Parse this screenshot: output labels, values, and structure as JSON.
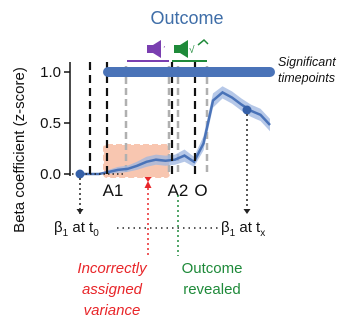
{
  "chart_data": {
    "type": "line",
    "title": "Outcome",
    "ylabel": "Beta coefficient (z-score)",
    "ylim": [
      -0.05,
      1.1
    ],
    "yticks": [
      0.0,
      0.5,
      1.0
    ],
    "ytick_labels": [
      "0.0",
      "0.5",
      "1.0"
    ],
    "x": [
      0,
      0.05,
      0.1,
      0.15,
      0.2,
      0.25,
      0.3,
      0.35,
      0.4,
      0.45,
      0.5,
      0.55,
      0.6,
      0.65,
      0.7,
      0.75,
      0.8,
      0.85,
      0.9,
      0.95,
      1.0
    ],
    "series": [
      {
        "values": [
          0,
          0,
          0,
          0.02,
          0.04,
          0.05,
          0.08,
          0.12,
          0.14,
          0.13,
          0.14,
          0.18,
          0.12,
          0.3,
          0.72,
          0.8,
          0.75,
          0.68,
          0.62,
          0.58,
          0.48
        ],
        "ci_half_width": [
          0,
          0,
          0,
          0.02,
          0.03,
          0.03,
          0.04,
          0.05,
          0.05,
          0.05,
          0.05,
          0.06,
          0.05,
          0.07,
          0.07,
          0.06,
          0.06,
          0.06,
          0.06,
          0.06,
          0.06
        ]
      }
    ],
    "event_lines": [
      {
        "x": 0.05,
        "label": ""
      },
      {
        "x": 0.15,
        "label": "A1"
      },
      {
        "x": 0.52,
        "label": "A2"
      },
      {
        "x": 0.64,
        "label": "O"
      }
    ],
    "significant_timepoints": {
      "label": "Significant timepoints",
      "y": 1.0,
      "x_start": 0.15,
      "x_end": 1.0
    },
    "points": [
      {
        "x": 0.0,
        "y": 0.0
      },
      {
        "x": 0.92,
        "y": 0.6
      }
    ],
    "beta_labels": {
      "t0": "β1 at t0",
      "tx": "β1 at tx"
    },
    "annotations": {
      "red": [
        "Incorrectly",
        "assigned",
        "variance"
      ],
      "green": [
        "Outcome",
        "revealed"
      ]
    },
    "colors": {
      "line": "#4a73b8",
      "band": "#9eb6e0",
      "title": "#3f6ea8",
      "red_box": "#f8c6b0",
      "red_text": "#e8262a",
      "green_text": "#1f8a3a",
      "purple_icon": "#7a3fb0",
      "green_icon": "#1f8a3a"
    }
  }
}
